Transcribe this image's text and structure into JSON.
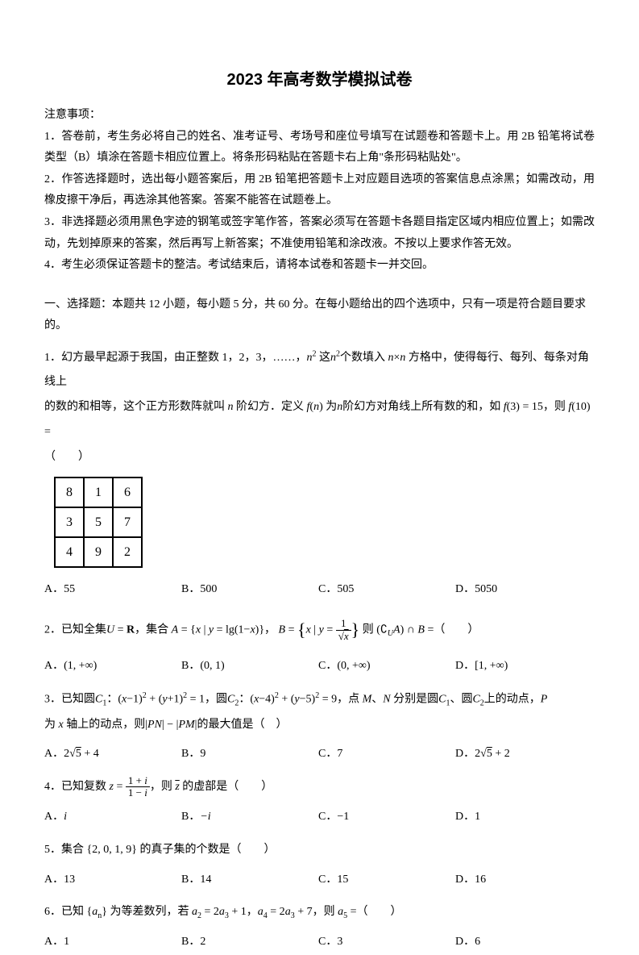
{
  "title": "2023 年高考数学模拟试卷",
  "notice_header": "注意事项：",
  "notices": [
    "1．答卷前，考生务必将自己的姓名、准考证号、考场号和座位号填写在试题卷和答题卡上。用 2B 铅笔将试卷类型（B）填涂在答题卡相应位置上。将条形码粘贴在答题卡右上角\"条形码粘贴处\"。",
    "2．作答选择题时，选出每小题答案后，用 2B 铅笔把答题卡上对应题目选项的答案信息点涂黑；如需改动，用橡皮擦干净后，再选涂其他答案。答案不能答在试题卷上。",
    "3．非选择题必须用黑色字迹的钢笔或签字笔作答，答案必须写在答题卡各题目指定区域内相应位置上；如需改动，先划掉原来的答案，然后再写上新答案；不准使用铅笔和涂改液。不按以上要求作答无效。",
    "4．考生必须保证答题卡的整洁。考试结束后，请将本试卷和答题卡一并交回。"
  ],
  "section1_header": "一、选择题：本题共 12 小题，每小题 5 分，共 60 分。在每小题给出的四个选项中，只有一项是符合题目要求的。",
  "q1": {
    "prefix": "1．幻方最早起源于我国，由正整数 1，2，3，……，",
    "mid1": " 这",
    "mid2": "个数填入 ",
    "mid3": " 方格中，使得每行、每列、每条对角线上",
    "line2a": "的数的和相等，这个正方形数阵就叫 ",
    "line2b": " 阶幻方．定义 ",
    "line2c": " 为",
    "line2d": "阶幻方对角线上所有数的和，如 ",
    "line2e": "，则 ",
    "line2f": " =",
    "paren": "（　　）",
    "table": [
      [
        "8",
        "1",
        "6"
      ],
      [
        "3",
        "5",
        "7"
      ],
      [
        "4",
        "9",
        "2"
      ]
    ],
    "opts": {
      "A": "55",
      "B": "500",
      "C": "505",
      "D": "5050"
    }
  },
  "q2": {
    "prefix": "2．已知全集",
    "t1": "，集合 ",
    "t2": "，",
    "t3": " 则 ",
    "t4": " =（　　）",
    "opts": {
      "A": "(1, +∞)",
      "B": "(0, 1)",
      "C": "(0, +∞)",
      "D": "[1, +∞)"
    }
  },
  "q3": {
    "prefix": "3．已知圆",
    "t1": "：",
    "t2": "，圆",
    "t3": "：",
    "t4": "，点 ",
    "t5": "、",
    "t6": " 分别是圆",
    "t7": "、圆",
    "t8": "上的动点，",
    "line2a": "为 ",
    "line2b": " 轴上的动点，则",
    "line2c": "的最大值是（　）",
    "opts": {
      "A": "2√5 + 4",
      "B": "9",
      "C": "7",
      "D": "2√5 + 2"
    }
  },
  "q4": {
    "prefix": "4．已知复数 ",
    "t1": "，则 ",
    "t2": " 的虚部是（　　）",
    "opts": {
      "A": "i",
      "B": "−i",
      "C": "−1",
      "D": "1"
    }
  },
  "q5": {
    "text": "5．集合 {2, 0, 1, 9} 的真子集的个数是（　　）",
    "opts": {
      "A": "13",
      "B": "14",
      "C": "15",
      "D": "16"
    }
  },
  "q6": {
    "prefix": "6．已知 ",
    "t1": " 为等差数列，若 ",
    "t2": "，",
    "t3": "，则 ",
    "t4": " =（　　）",
    "opts": {
      "A": "1",
      "B": "2",
      "C": "3",
      "D": "6"
    }
  }
}
